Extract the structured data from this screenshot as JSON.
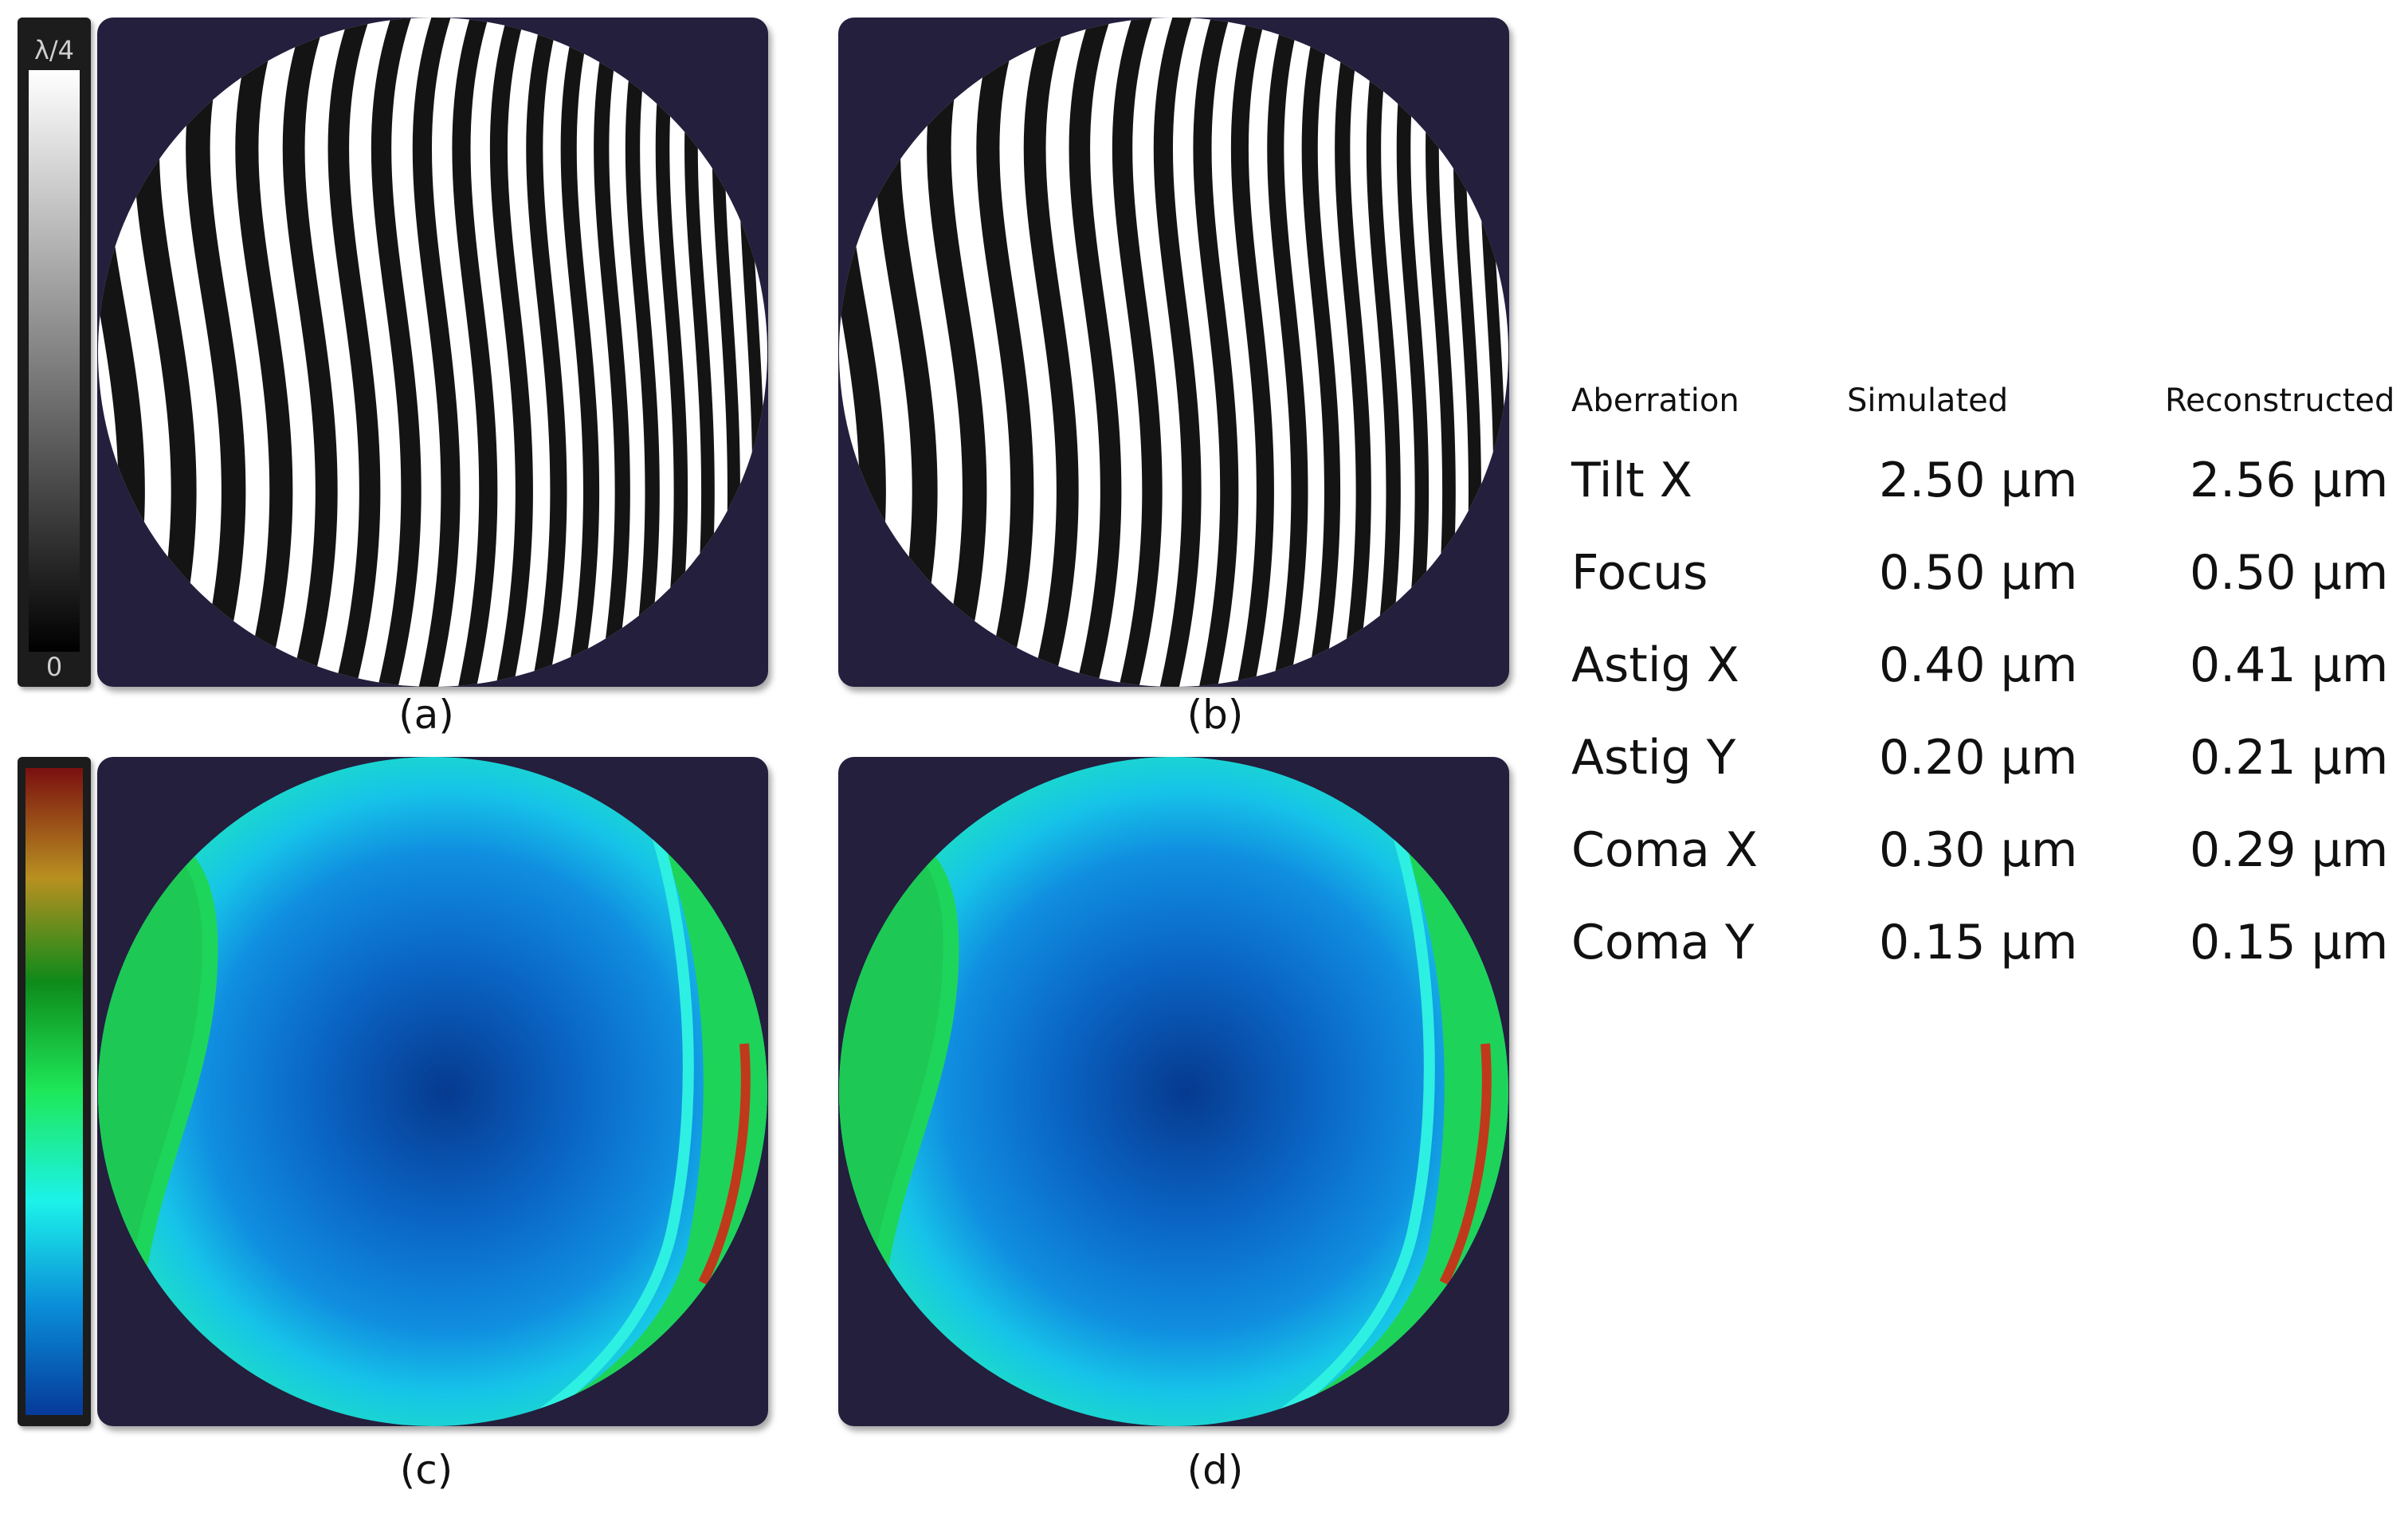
{
  "colorbars": {
    "grayscale": {
      "top_label": "λ/4",
      "bottom_label": "0"
    },
    "heightmap": {
      "colors": [
        "#7a1010",
        "#b89020",
        "#0e8a1a",
        "#1ee85a",
        "#1cf2ea",
        "#0a8ed8",
        "#063a9a"
      ]
    }
  },
  "panels": [
    {
      "caption": "(a)",
      "type": "interferogram"
    },
    {
      "caption": "(b)",
      "type": "interferogram"
    },
    {
      "caption": "(c)",
      "type": "wavefront"
    },
    {
      "caption": "(d)",
      "type": "wavefront"
    }
  ],
  "table": {
    "headers": [
      "Aberration",
      "Simulated",
      "Reconstructed"
    ],
    "rows": [
      {
        "aberration": "Tilt X",
        "simulated": "2.50 µm",
        "reconstructed": "2.56 µm"
      },
      {
        "aberration": "Focus",
        "simulated": "0.50 µm",
        "reconstructed": "0.50 µm"
      },
      {
        "aberration": "Astig X",
        "simulated": "0.40 µm",
        "reconstructed": "0.41 µm"
      },
      {
        "aberration": "Astig Y",
        "simulated": "0.20 µm",
        "reconstructed": "0.21 µm"
      },
      {
        "aberration": "Coma X",
        "simulated": "0.30 µm",
        "reconstructed": "0.29 µm"
      },
      {
        "aberration": "Coma Y",
        "simulated": "0.15 µm",
        "reconstructed": "0.15 µm"
      }
    ]
  }
}
